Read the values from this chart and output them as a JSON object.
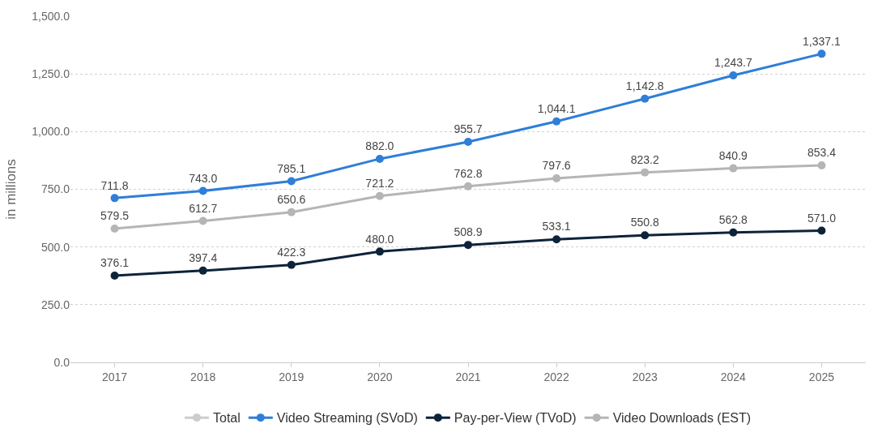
{
  "chart_data": {
    "type": "line",
    "ylabel": "in millions",
    "categories": [
      "2017",
      "2018",
      "2019",
      "2020",
      "2021",
      "2022",
      "2023",
      "2024",
      "2025"
    ],
    "series": [
      {
        "name": "Total",
        "color": "#cccccc",
        "values": [
          null,
          null,
          null,
          null,
          null,
          null,
          null,
          null,
          null
        ]
      },
      {
        "name": "Video Streaming (SVoD)",
        "color": "#2f7ed8",
        "values": [
          711.8,
          743.0,
          785.1,
          882.0,
          955.7,
          1044.1,
          1142.8,
          1243.7,
          1337.1
        ],
        "value_labels": [
          "711.8",
          "743.0",
          "785.1",
          "882.0",
          "955.7",
          "1,044.1",
          "1,142.8",
          "1,243.7",
          "1,337.1"
        ]
      },
      {
        "name": "Pay-per-View (TVoD)",
        "color": "#0d233a",
        "values": [
          376.1,
          397.4,
          422.3,
          480.0,
          508.9,
          533.1,
          550.8,
          562.8,
          571.0
        ],
        "value_labels": [
          "376.1",
          "397.4",
          "422.3",
          "480.0",
          "508.9",
          "533.1",
          "550.8",
          "562.8",
          "571.0"
        ]
      },
      {
        "name": "Video Downloads (EST)",
        "color": "#b5b5b5",
        "values": [
          579.5,
          612.7,
          650.6,
          721.2,
          762.8,
          797.6,
          823.2,
          840.9,
          853.4
        ],
        "value_labels": [
          "579.5",
          "612.7",
          "650.6",
          "721.2",
          "762.8",
          "797.6",
          "823.2",
          "840.9",
          "853.4"
        ]
      }
    ],
    "ylim": [
      0,
      1500
    ],
    "yticks": [
      {
        "value": 0,
        "label": "0.0"
      },
      {
        "value": 250,
        "label": "250.0"
      },
      {
        "value": 500,
        "label": "500.0"
      },
      {
        "value": 750,
        "label": "750.0"
      },
      {
        "value": 1000,
        "label": "1,000.0"
      },
      {
        "value": 1250,
        "label": "1,250.0"
      },
      {
        "value": 1500,
        "label": "1,500.0"
      }
    ],
    "grid": "y",
    "legend": "bottom",
    "marker": "circle",
    "line_style": "solid"
  }
}
